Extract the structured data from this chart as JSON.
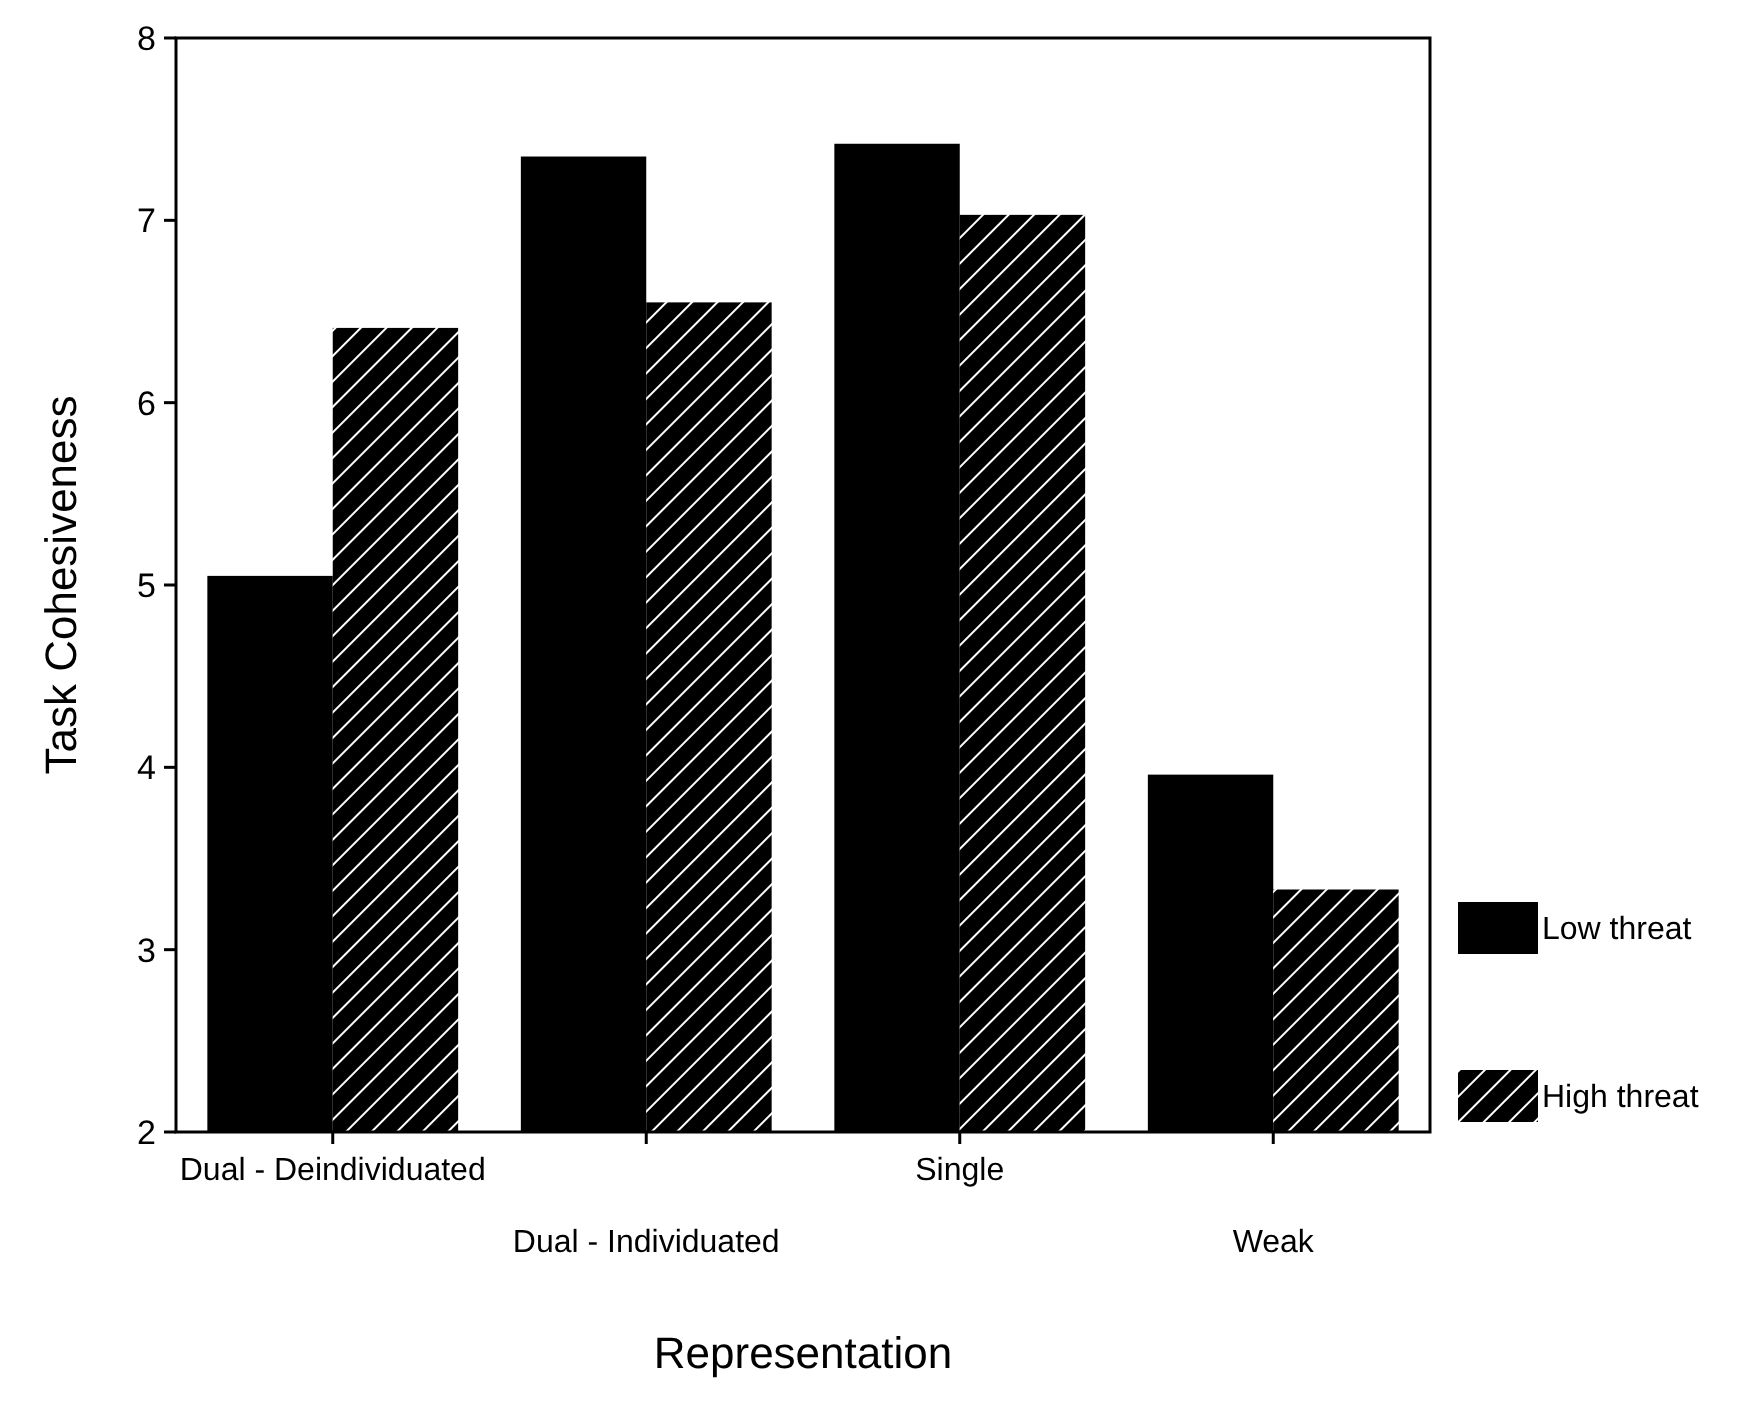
{
  "chart_data": {
    "type": "bar",
    "xlabel": "Representation",
    "ylabel": "Task Cohesiveness",
    "categories": [
      "Dual - Deindividuated",
      "Dual - Individuated",
      "Single",
      "Weak"
    ],
    "series": [
      {
        "name": "Low threat",
        "color": "#000000",
        "values": [
          5.05,
          7.35,
          7.42,
          3.96
        ]
      },
      {
        "name": "High threat",
        "color": "#000000",
        "values": [
          6.41,
          6.55,
          7.03,
          3.33
        ]
      }
    ],
    "ylim": [
      2,
      8
    ],
    "yticks": [
      2,
      3,
      4,
      5,
      6,
      7,
      8
    ],
    "grid": false,
    "legend": "right"
  }
}
